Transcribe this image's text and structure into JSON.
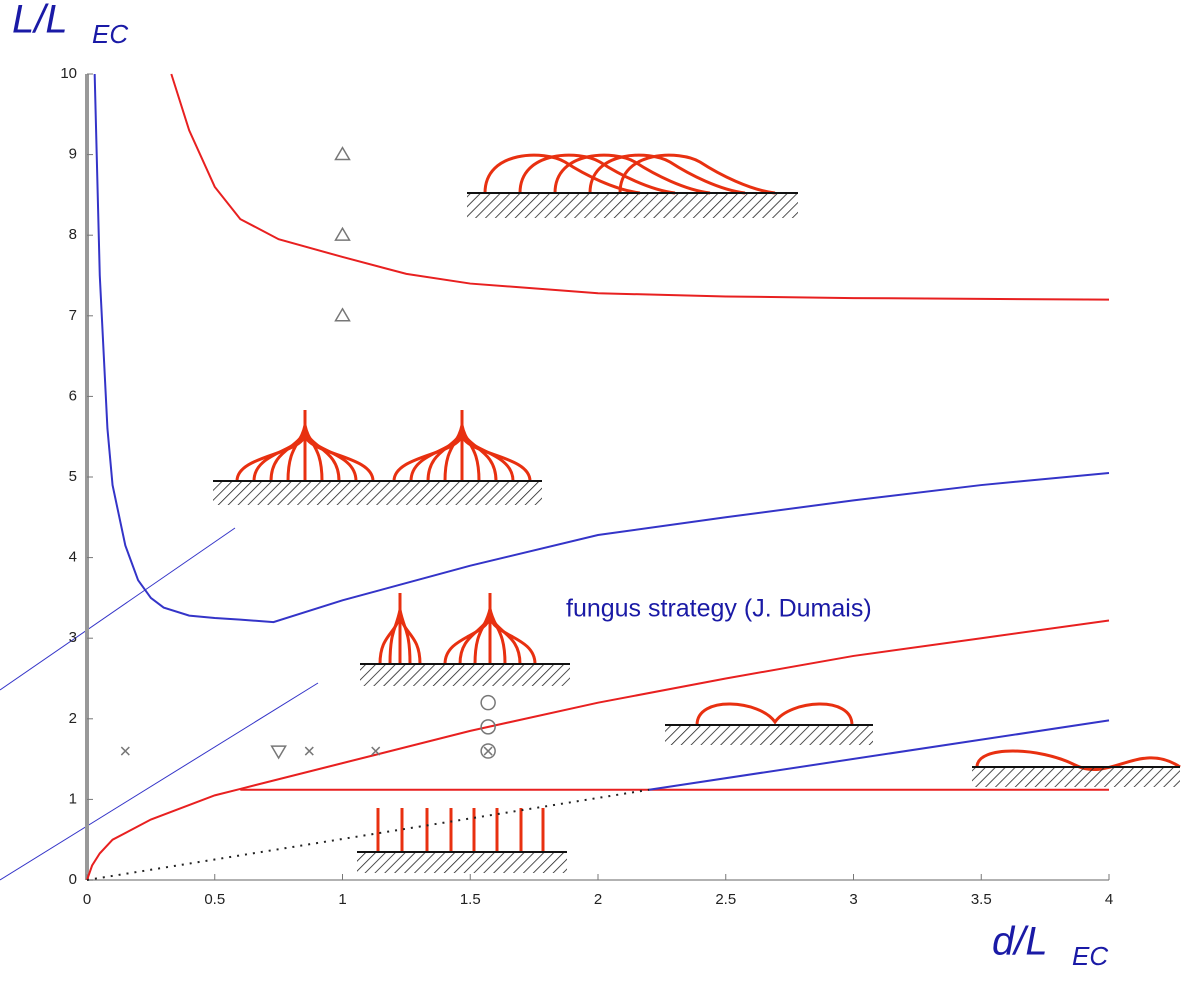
{
  "chart_data": {
    "type": "line",
    "ylabel": "L/L",
    "ylabel_sub": "EC",
    "xlabel": "d/L",
    "xlabel_sub": "EC",
    "annotation": "fungus strategy (J. Dumais)",
    "xlim": [
      0,
      4
    ],
    "xticks": [
      0,
      0.5,
      1,
      1.5,
      2,
      2.5,
      3,
      3.5,
      4
    ],
    "ylim": [
      0,
      10
    ],
    "yticks": [
      0,
      1,
      2,
      3,
      4,
      5,
      6,
      7,
      8,
      9,
      10
    ],
    "series": [
      {
        "color": "#3434c8",
        "style": "solid",
        "x": [
          0.03,
          0.05,
          0.08,
          0.1,
          0.15,
          0.2,
          0.25,
          0.3,
          0.4,
          0.5,
          0.6,
          0.73,
          1,
          1.5,
          2,
          2.5,
          3,
          3.5,
          4
        ],
        "values": [
          10,
          7.5,
          5.6,
          4.9,
          4.15,
          3.72,
          3.5,
          3.38,
          3.28,
          3.25,
          3.23,
          3.2,
          3.47,
          3.9,
          4.28,
          4.5,
          4.71,
          4.9,
          5.05
        ]
      },
      {
        "color": "#e82020",
        "style": "solid",
        "x": [
          0.33,
          0.4,
          0.5,
          0.6,
          0.75,
          1,
          1.25,
          1.5,
          2,
          2.5,
          3,
          3.5,
          4
        ],
        "values": [
          10,
          9.3,
          8.6,
          8.2,
          7.95,
          7.73,
          7.52,
          7.4,
          7.28,
          7.24,
          7.22,
          7.21,
          7.2
        ]
      },
      {
        "color": "#e82020",
        "style": "solid",
        "x": [
          0,
          0.02,
          0.05,
          0.1,
          0.25,
          0.5,
          0.6,
          1,
          1.5,
          2,
          2.5,
          3,
          3.5,
          4
        ],
        "values": [
          0,
          0.18,
          0.33,
          0.5,
          0.75,
          1.05,
          1.13,
          1.45,
          1.85,
          2.2,
          2.5,
          2.78,
          3.0,
          3.22
        ]
      },
      {
        "color": "#e82020",
        "style": "solid",
        "x": [
          0.6,
          4
        ],
        "values": [
          1.12,
          1.12
        ]
      },
      {
        "color": "#3434c8",
        "style": "solid",
        "x": [
          2.2,
          4
        ],
        "values": [
          1.12,
          1.98
        ]
      },
      {
        "color": "#222222",
        "style": "dotted",
        "x": [
          0,
          2.2
        ],
        "values": [
          0,
          1.12
        ]
      },
      {
        "color": "#777777",
        "style": "none",
        "marker": "triangle-up",
        "x": [
          1,
          1,
          1
        ],
        "values": [
          9,
          8,
          7
        ]
      },
      {
        "color": "#777777",
        "style": "none",
        "marker": "cross",
        "x": [
          0.15,
          0.87,
          1.13
        ],
        "values": [
          1.6,
          1.6,
          1.6
        ]
      },
      {
        "color": "#777777",
        "style": "none",
        "marker": "triangle-down",
        "x": [
          0.75
        ],
        "values": [
          1.6
        ]
      },
      {
        "color": "#777777",
        "style": "none",
        "marker": "circle",
        "x": [
          1.57,
          1.57
        ],
        "values": [
          2.2,
          1.9
        ]
      },
      {
        "color": "#777777",
        "style": "none",
        "marker": "circle-cross",
        "x": [
          1.57
        ],
        "values": [
          1.6
        ]
      }
    ]
  }
}
